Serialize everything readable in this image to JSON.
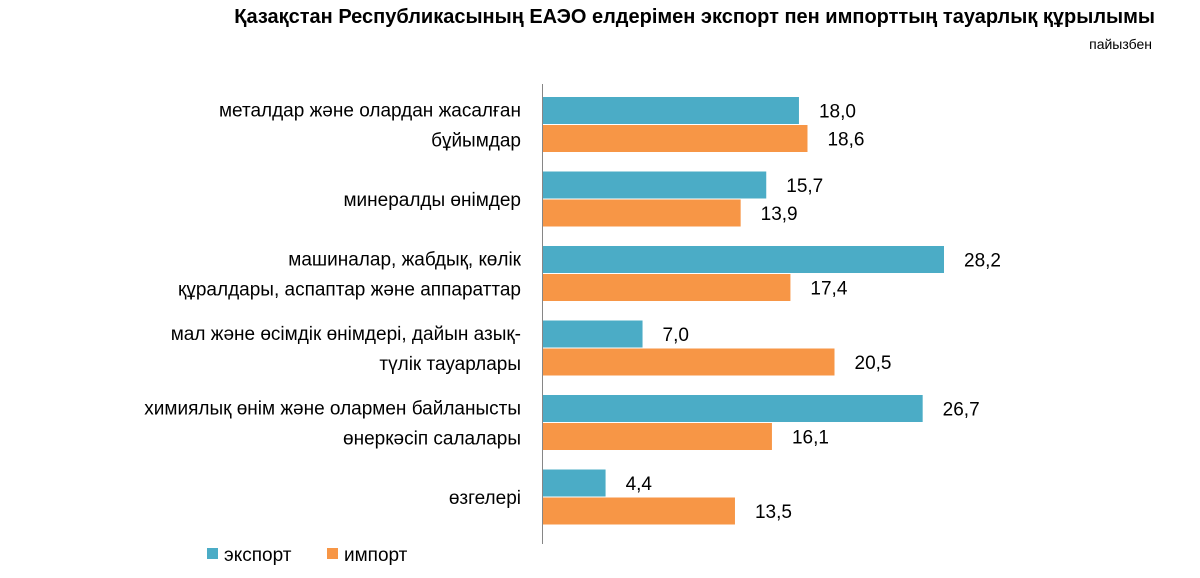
{
  "title": "Қазақстан Республикасының ЕАЭО елдерімен экспорт пен импорттың тауарлық құрылымы",
  "subtitle": "пайызбен",
  "chart_data": {
    "type": "bar",
    "orientation": "horizontal",
    "categories": [
      [
        "металдар және олардан жасалған",
        "бұйымдар"
      ],
      [
        "минералды өнімдер"
      ],
      [
        "машиналар, жабдық, көлік",
        "құралдары, аспаптар және аппараттар"
      ],
      [
        "мал және өсімдік өнімдері, дайын азық-",
        "түлік тауарлары"
      ],
      [
        "химиялық өнім және олармен байланысты",
        "өнеркәсіп салалары"
      ],
      [
        "өзгелері"
      ]
    ],
    "series": [
      {
        "name": "экспорт",
        "color": "#4BACC6",
        "values": [
          18.0,
          15.7,
          28.2,
          7.0,
          26.7,
          4.4
        ],
        "labels": [
          "18,0",
          "15,7",
          "28,2",
          "7,0",
          "26,7",
          "4,4"
        ]
      },
      {
        "name": "импорт",
        "color": "#F79646",
        "values": [
          18.6,
          13.9,
          17.4,
          20.5,
          16.1,
          13.5
        ],
        "labels": [
          "18,6",
          "13,9",
          "17,4",
          "20,5",
          "16,1",
          "13,5"
        ]
      }
    ],
    "xlim": [
      0,
      28.2
    ],
    "grid": false,
    "legend": "bottom-left"
  }
}
